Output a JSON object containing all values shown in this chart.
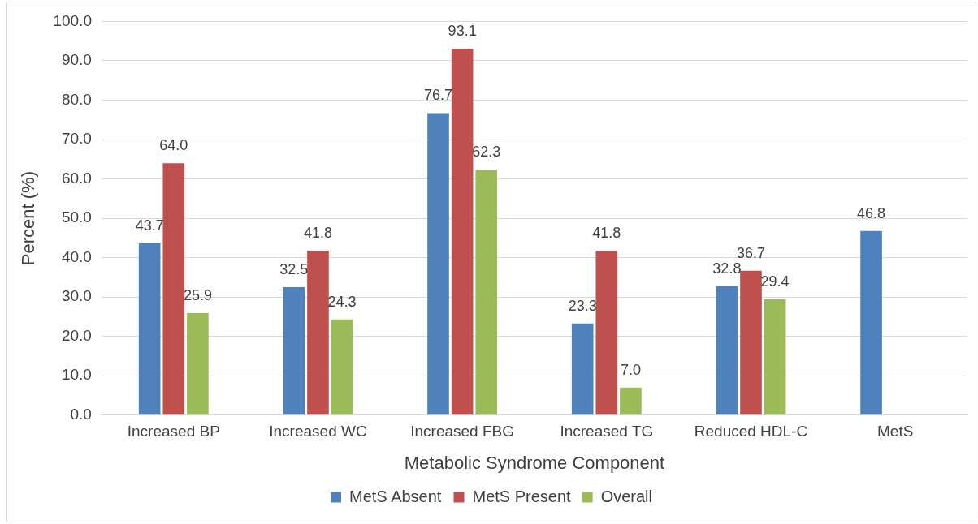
{
  "chart_data": {
    "type": "bar",
    "xlabel": "Metabolic Syndrome Component",
    "ylabel": "Percent (%)",
    "categories": [
      "Increased BP",
      "Increased WC",
      "Increased FBG",
      "Increased TG",
      "Reduced HDL-C",
      "MetS"
    ],
    "series": [
      {
        "name": "MetS Absent",
        "color": "#4f81bd",
        "values": [
          43.7,
          32.5,
          76.7,
          23.3,
          32.8,
          46.8
        ],
        "value_labels": [
          "43.7",
          "32.5",
          "76.7",
          "23.3",
          "32.8",
          "46.8"
        ]
      },
      {
        "name": "MetS Present",
        "color": "#c0504d",
        "values": [
          64.0,
          41.8,
          93.1,
          41.8,
          36.7,
          null
        ],
        "value_labels": [
          "64.0",
          "41.8",
          "93.1",
          "41.8",
          "36.7",
          null
        ]
      },
      {
        "name": "Overall",
        "color": "#9bbb59",
        "values": [
          25.9,
          24.3,
          62.3,
          7.0,
          29.4,
          null
        ],
        "value_labels": [
          "25.9",
          "24.3",
          "62.3",
          "7.0",
          "29.4",
          null
        ]
      }
    ],
    "ylim": [
      0,
      100
    ],
    "yticks": [
      {
        "value": 0,
        "label": "0.0"
      },
      {
        "value": 10,
        "label": "10.0"
      },
      {
        "value": 20,
        "label": "20.0"
      },
      {
        "value": 30,
        "label": "30.0"
      },
      {
        "value": 40,
        "label": "40.0"
      },
      {
        "value": 50,
        "label": "50.0"
      },
      {
        "value": 60,
        "label": "60.0"
      },
      {
        "value": 70,
        "label": "70.0"
      },
      {
        "value": 80,
        "label": "80.0"
      },
      {
        "value": 90,
        "label": "90.0"
      },
      {
        "value": 100,
        "label": "100.0"
      }
    ],
    "grid": "y",
    "legend": "bottom"
  }
}
